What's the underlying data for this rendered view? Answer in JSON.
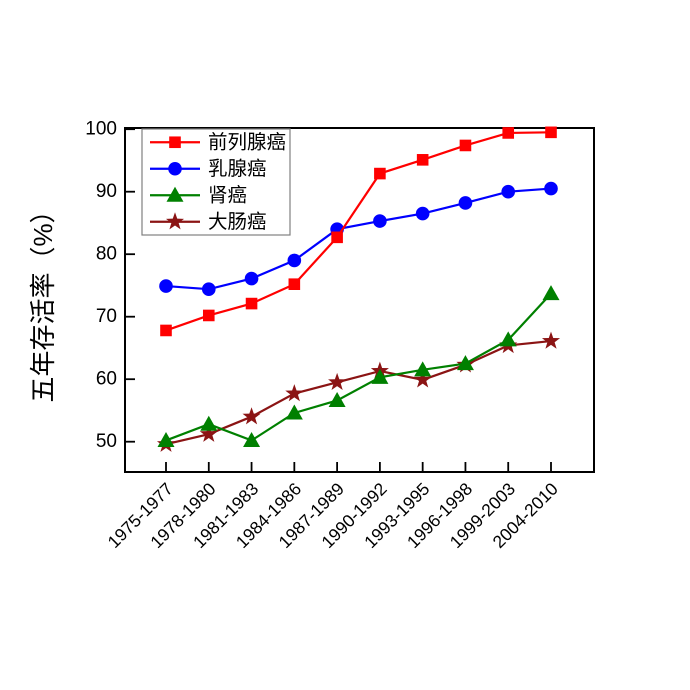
{
  "figure": {
    "background": "#ffffff",
    "frame_color": "#000000",
    "legend_border_color": "#808080"
  },
  "chart_data": {
    "type": "line",
    "title": "",
    "xlabel": "",
    "ylabel": "五年存活率（%）",
    "categories": [
      "1975-1977",
      "1978-1980",
      "1981-1983",
      "1984-1986",
      "1987-1989",
      "1990-1992",
      "1993-1995",
      "1996-1998",
      "1999-2003",
      "2004-2010"
    ],
    "yticks": [
      50,
      60,
      70,
      80,
      90,
      100
    ],
    "ylim": [
      45,
      100.5
    ],
    "grid": false,
    "legend_position": "top-left-inside",
    "series": [
      {
        "key": "prostate-cancer",
        "name": "前列腺癌",
        "color": "#ff0000",
        "marker": "square",
        "values": [
          67.8,
          70.2,
          72.1,
          75.2,
          82.7,
          92.9,
          95.1,
          97.4,
          99.4,
          99.5
        ]
      },
      {
        "key": "breast-cancer",
        "name": "乳腺癌",
        "color": "#0000ff",
        "marker": "circle",
        "values": [
          74.9,
          74.4,
          76.1,
          79.0,
          84.0,
          85.3,
          86.5,
          88.2,
          90.0,
          90.5
        ]
      },
      {
        "key": "kidney-cancer",
        "name": "肾癌",
        "color": "#008000",
        "marker": "triangle",
        "values": [
          50.2,
          52.8,
          50.2,
          54.6,
          56.6,
          60.3,
          61.5,
          62.5,
          66.3,
          73.7
        ]
      },
      {
        "key": "colorectal-cancer",
        "name": "大肠癌",
        "color": "#8b1414",
        "marker": "star",
        "values": [
          49.6,
          51.2,
          54.0,
          57.7,
          59.5,
          61.3,
          59.9,
          62.3,
          65.4,
          66.1
        ]
      }
    ]
  }
}
